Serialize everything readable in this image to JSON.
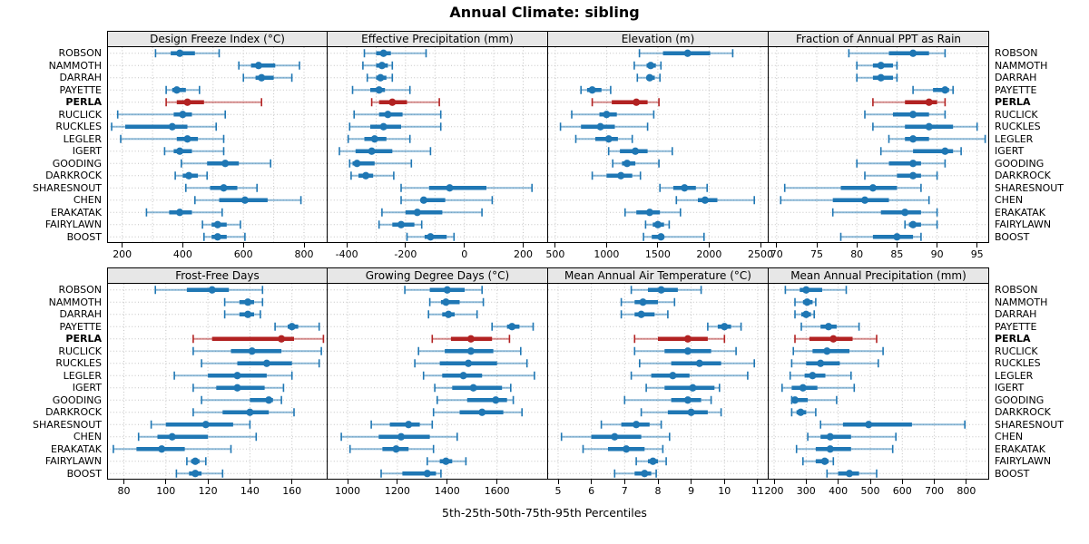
{
  "title": "Annual Climate: sibling",
  "footer": "5th-25th-50th-75th-95th Percentiles",
  "colors": {
    "normal": "#1f77b4",
    "highlight": "#b22222",
    "grid": "#c3c3c3",
    "strip_bg": "#e7e7e7",
    "border": "#000000"
  },
  "chart_data": {
    "type": "scatter",
    "subtype": "trellis-percentile-dotplot",
    "title": "Annual Climate: sibling",
    "xlabel": "5th-25th-50th-75th-95th Percentiles",
    "grid_on": true,
    "legend_position": "none",
    "percentiles": [
      5,
      25,
      50,
      75,
      95
    ],
    "highlight_station": "PERLA",
    "stations": [
      "ROBSON",
      "NAMMOTH",
      "DARRAH",
      "PAYETTE",
      "PERLA",
      "RUCLICK",
      "RUCKLES",
      "LEGLER",
      "IGERT",
      "GOODING",
      "DARKROCK",
      "SHARESNOUT",
      "CHEN",
      "ERAKATAK",
      "FAIRYLAWN",
      "BOOST"
    ],
    "panels": [
      {
        "title": "Design Freeze Index (°C)",
        "row": 0,
        "col": 0,
        "ticks": [
          200,
          400,
          600,
          800
        ],
        "grid": [
          200,
          300,
          400,
          500,
          600,
          700,
          800
        ],
        "domain": [
          150,
          878
        ],
        "data": [
          [
            310,
            360,
            390,
            440,
            520
          ],
          [
            585,
            625,
            650,
            705,
            785
          ],
          [
            600,
            640,
            660,
            700,
            760
          ],
          [
            345,
            365,
            380,
            410,
            455
          ],
          [
            345,
            380,
            415,
            470,
            660
          ],
          [
            185,
            370,
            400,
            430,
            540
          ],
          [
            165,
            210,
            365,
            415,
            510
          ],
          [
            195,
            380,
            415,
            450,
            535
          ],
          [
            340,
            370,
            390,
            430,
            535
          ],
          [
            395,
            480,
            540,
            585,
            690
          ],
          [
            375,
            400,
            420,
            450,
            480
          ],
          [
            410,
            490,
            535,
            580,
            645
          ],
          [
            440,
            520,
            605,
            680,
            790
          ],
          [
            280,
            355,
            390,
            430,
            530
          ],
          [
            465,
            495,
            515,
            545,
            590
          ],
          [
            470,
            495,
            515,
            545,
            605
          ]
        ]
      },
      {
        "title": "Effective Precipitation (mm)",
        "row": 0,
        "col": 1,
        "ticks": [
          -400,
          -200,
          0,
          200
        ],
        "grid": [
          -400,
          -300,
          -200,
          -100,
          0,
          100,
          200
        ],
        "domain": [
          -465,
          285
        ],
        "data": [
          [
            -340,
            -300,
            -275,
            -250,
            -130
          ],
          [
            -345,
            -300,
            -280,
            -260,
            -245
          ],
          [
            -330,
            -300,
            -285,
            -265,
            -245
          ],
          [
            -380,
            -320,
            -290,
            -270,
            -185
          ],
          [
            -315,
            -290,
            -245,
            -195,
            -85
          ],
          [
            -375,
            -290,
            -260,
            -210,
            -80
          ],
          [
            -390,
            -320,
            -275,
            -215,
            -80
          ],
          [
            -395,
            -340,
            -305,
            -265,
            -185
          ],
          [
            -425,
            -370,
            -315,
            -245,
            -115
          ],
          [
            -390,
            -380,
            -365,
            -305,
            -180
          ],
          [
            -385,
            -360,
            -335,
            -310,
            -240
          ],
          [
            -215,
            -120,
            -50,
            75,
            230
          ],
          [
            -215,
            -145,
            -138,
            -65,
            95
          ],
          [
            -280,
            -200,
            -160,
            -75,
            60
          ],
          [
            -290,
            -245,
            -215,
            -170,
            -145
          ],
          [
            -195,
            -135,
            -115,
            -60,
            -35
          ]
        ]
      },
      {
        "title": "Elevation (m)",
        "row": 0,
        "col": 2,
        "ticks": [
          500,
          1000,
          1500,
          2000,
          2500
        ],
        "grid": [
          500,
          1000,
          1500,
          2000,
          2500
        ],
        "domain": [
          430,
          2580
        ],
        "data": [
          [
            1320,
            1550,
            1790,
            2010,
            2230
          ],
          [
            1270,
            1390,
            1430,
            1480,
            1530
          ],
          [
            1300,
            1390,
            1420,
            1470,
            1520
          ],
          [
            750,
            810,
            860,
            950,
            1040
          ],
          [
            860,
            1050,
            1290,
            1400,
            1510
          ],
          [
            660,
            930,
            1000,
            1100,
            1460
          ],
          [
            550,
            750,
            940,
            1080,
            1400
          ],
          [
            700,
            890,
            1020,
            1110,
            1250
          ],
          [
            1020,
            1130,
            1280,
            1400,
            1640
          ],
          [
            1060,
            1150,
            1200,
            1280,
            1510
          ],
          [
            860,
            1000,
            1140,
            1250,
            1330
          ],
          [
            1520,
            1650,
            1760,
            1870,
            1980
          ],
          [
            1680,
            1890,
            1960,
            2080,
            2440
          ],
          [
            1180,
            1290,
            1420,
            1520,
            1720
          ],
          [
            1380,
            1450,
            1500,
            1560,
            1610
          ],
          [
            1360,
            1440,
            1530,
            1560,
            1950
          ]
        ]
      },
      {
        "title": "Fraction of Annual PPT as Rain",
        "row": 0,
        "col": 3,
        "ticks": [
          70,
          75,
          80,
          85,
          90,
          95
        ],
        "grid": [
          70,
          75,
          80,
          85,
          90,
          95
        ],
        "domain": [
          69,
          96.5
        ],
        "data": [
          [
            79,
            84,
            87,
            89,
            91
          ],
          [
            80,
            82,
            83,
            84.5,
            85
          ],
          [
            80,
            82,
            83,
            84.5,
            85
          ],
          [
            87,
            89.5,
            91,
            91.5,
            92
          ],
          [
            82,
            86,
            89,
            90,
            91
          ],
          [
            81,
            84.5,
            87,
            89,
            91
          ],
          [
            82,
            86,
            89,
            92,
            95
          ],
          [
            84,
            86,
            87,
            89,
            96
          ],
          [
            83,
            87,
            91,
            92,
            93
          ],
          [
            80,
            84,
            87,
            88,
            91
          ],
          [
            81,
            85,
            87,
            88,
            90
          ],
          [
            71,
            78,
            82,
            85,
            88
          ],
          [
            70.5,
            77,
            81,
            84,
            89
          ],
          [
            77,
            83,
            86,
            88,
            90
          ],
          [
            86,
            86.5,
            87,
            88,
            90
          ],
          [
            78,
            82,
            85,
            87,
            88
          ]
        ]
      },
      {
        "title": "Frost-Free Days",
        "row": 1,
        "col": 0,
        "ticks": [
          80,
          100,
          120,
          140,
          160
        ],
        "grid": [
          80,
          100,
          120,
          140,
          160
        ],
        "domain": [
          72,
          177
        ],
        "data": [
          [
            95,
            110,
            122,
            130,
            146
          ],
          [
            128,
            135,
            139,
            142,
            146
          ],
          [
            128,
            135,
            139,
            142,
            145
          ],
          [
            152,
            158,
            160,
            163,
            173
          ],
          [
            113,
            122,
            155,
            161,
            175
          ],
          [
            113,
            131,
            141,
            155,
            174
          ],
          [
            117,
            134,
            148,
            160,
            173
          ],
          [
            104,
            120,
            134,
            148,
            160
          ],
          [
            113,
            124,
            134,
            147,
            156
          ],
          [
            117,
            140,
            149,
            151,
            155
          ],
          [
            113,
            127,
            140,
            149,
            161
          ],
          [
            93,
            100,
            119,
            132,
            140
          ],
          [
            87,
            96,
            103,
            120,
            143
          ],
          [
            75,
            86,
            98,
            109,
            131
          ],
          [
            110,
            112,
            114,
            116,
            119
          ],
          [
            105,
            111,
            114,
            117,
            127
          ]
        ]
      },
      {
        "title": "Growing Degree Days (°C)",
        "row": 1,
        "col": 1,
        "ticks": [
          1000,
          1200,
          1400,
          1600
        ],
        "grid": [
          1000,
          1200,
          1400,
          1600
        ],
        "domain": [
          920,
          1805
        ],
        "data": [
          [
            1230,
            1330,
            1400,
            1470,
            1540
          ],
          [
            1330,
            1375,
            1395,
            1450,
            1545
          ],
          [
            1325,
            1380,
            1405,
            1430,
            1520
          ],
          [
            1580,
            1640,
            1660,
            1690,
            1745
          ],
          [
            1340,
            1415,
            1495,
            1580,
            1650
          ],
          [
            1285,
            1390,
            1495,
            1585,
            1695
          ],
          [
            1270,
            1370,
            1485,
            1600,
            1720
          ],
          [
            1305,
            1380,
            1465,
            1540,
            1750
          ],
          [
            1350,
            1420,
            1505,
            1620,
            1655
          ],
          [
            1360,
            1480,
            1595,
            1640,
            1665
          ],
          [
            1345,
            1450,
            1540,
            1625,
            1700
          ],
          [
            1095,
            1170,
            1245,
            1290,
            1340
          ],
          [
            975,
            1125,
            1215,
            1330,
            1440
          ],
          [
            1010,
            1140,
            1195,
            1245,
            1345
          ],
          [
            1320,
            1370,
            1395,
            1420,
            1475
          ],
          [
            1135,
            1220,
            1320,
            1355,
            1375
          ]
        ]
      },
      {
        "title": "Mean Annual Air Temperature (°C)",
        "row": 1,
        "col": 2,
        "ticks": [
          5,
          6,
          7,
          8,
          9,
          10,
          11
        ],
        "grid": [
          5,
          6,
          7,
          8,
          9,
          10,
          11
        ],
        "domain": [
          4.7,
          11.33
        ],
        "data": [
          [
            7.2,
            7.7,
            8.1,
            8.6,
            9.3
          ],
          [
            6.9,
            7.3,
            7.55,
            8.0,
            8.5
          ],
          [
            6.9,
            7.3,
            7.5,
            7.9,
            8.3
          ],
          [
            9.5,
            9.8,
            10.0,
            10.2,
            10.5
          ],
          [
            7.3,
            8.0,
            8.9,
            9.5,
            10.0
          ],
          [
            7.3,
            8.2,
            8.9,
            9.6,
            10.35
          ],
          [
            7.45,
            8.4,
            9.25,
            9.9,
            10.9
          ],
          [
            7.2,
            7.8,
            8.45,
            8.95,
            10.7
          ],
          [
            7.65,
            8.2,
            9.05,
            9.7,
            9.85
          ],
          [
            7.0,
            8.4,
            8.9,
            9.3,
            9.6
          ],
          [
            7.5,
            8.3,
            9.0,
            9.5,
            9.9
          ],
          [
            6.3,
            6.9,
            7.35,
            7.75,
            8.1
          ],
          [
            5.1,
            6.0,
            6.7,
            7.5,
            8.35
          ],
          [
            5.75,
            6.5,
            7.05,
            7.6,
            8.15
          ],
          [
            7.35,
            7.7,
            7.85,
            8.0,
            8.25
          ],
          [
            6.7,
            7.3,
            7.6,
            7.8,
            7.95
          ]
        ]
      },
      {
        "title": "Mean Annual Precipitation (mm)",
        "row": 1,
        "col": 3,
        "ticks": [
          200,
          300,
          400,
          500,
          600,
          700,
          800
        ],
        "grid": [
          200,
          300,
          400,
          500,
          600,
          700,
          800
        ],
        "domain": [
          183,
          871
        ],
        "data": [
          [
            235,
            280,
            300,
            350,
            425
          ],
          [
            265,
            290,
            303,
            320,
            330
          ],
          [
            265,
            285,
            300,
            315,
            325
          ],
          [
            285,
            345,
            370,
            395,
            465
          ],
          [
            265,
            310,
            385,
            445,
            520
          ],
          [
            260,
            320,
            365,
            435,
            540
          ],
          [
            255,
            300,
            345,
            405,
            525
          ],
          [
            250,
            295,
            320,
            360,
            440
          ],
          [
            225,
            255,
            290,
            335,
            450
          ],
          [
            255,
            260,
            265,
            305,
            395
          ],
          [
            255,
            270,
            283,
            300,
            330
          ],
          [
            345,
            415,
            495,
            630,
            795
          ],
          [
            305,
            345,
            375,
            440,
            580
          ],
          [
            270,
            330,
            375,
            440,
            570
          ],
          [
            290,
            330,
            358,
            370,
            385
          ],
          [
            365,
            400,
            435,
            465,
            520
          ]
        ]
      }
    ]
  }
}
